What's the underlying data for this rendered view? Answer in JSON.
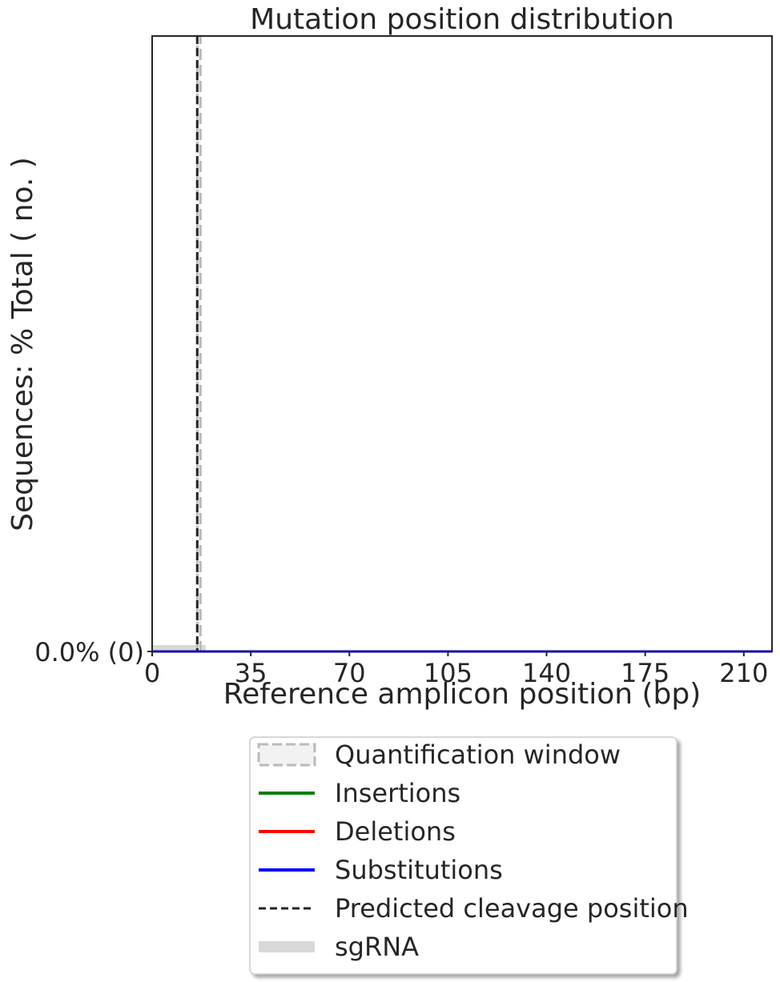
{
  "chart_data": {
    "type": "line",
    "title": "Mutation position distribution",
    "xlabel": "Reference amplicon position (bp)",
    "ylabel": "Sequences: % Total ( no. )",
    "xlim": [
      0,
      220
    ],
    "ylim": [
      0,
      1
    ],
    "xticks": [
      0,
      35,
      70,
      105,
      140,
      175,
      210
    ],
    "xtick_labels": [
      "0",
      "35",
      "70",
      "105",
      "140",
      "175",
      "210"
    ],
    "yticks": [
      0
    ],
    "ytick_labels": [
      "0.0% (0)"
    ],
    "grid": false,
    "series": [
      {
        "name": "Insertions",
        "color": "#008000",
        "x": [
          0,
          220
        ],
        "y": [
          0,
          0
        ]
      },
      {
        "name": "Deletions",
        "color": "#ff0000",
        "x": [
          0,
          220
        ],
        "y": [
          0,
          0
        ]
      },
      {
        "name": "Substitutions",
        "color": "#0000ff",
        "x": [
          0,
          220
        ],
        "y": [
          0,
          0
        ]
      }
    ],
    "quantification_window": {
      "start": 16,
      "end": 17
    },
    "predicted_cleavage_position": 16,
    "sgrna": {
      "start": 0,
      "end": 19
    },
    "legend": {
      "placement": "below",
      "entries": [
        {
          "label": "Quantification window",
          "style": "window"
        },
        {
          "label": "Insertions",
          "style": "line",
          "color": "#008000"
        },
        {
          "label": "Deletions",
          "style": "line",
          "color": "#ff0000"
        },
        {
          "label": "Substitutions",
          "style": "line",
          "color": "#0000ff"
        },
        {
          "label": "Predicted cleavage position",
          "style": "dashed",
          "color": "#262626"
        },
        {
          "label": "sgRNA",
          "style": "band",
          "color": "#d9d9d9"
        }
      ]
    }
  }
}
